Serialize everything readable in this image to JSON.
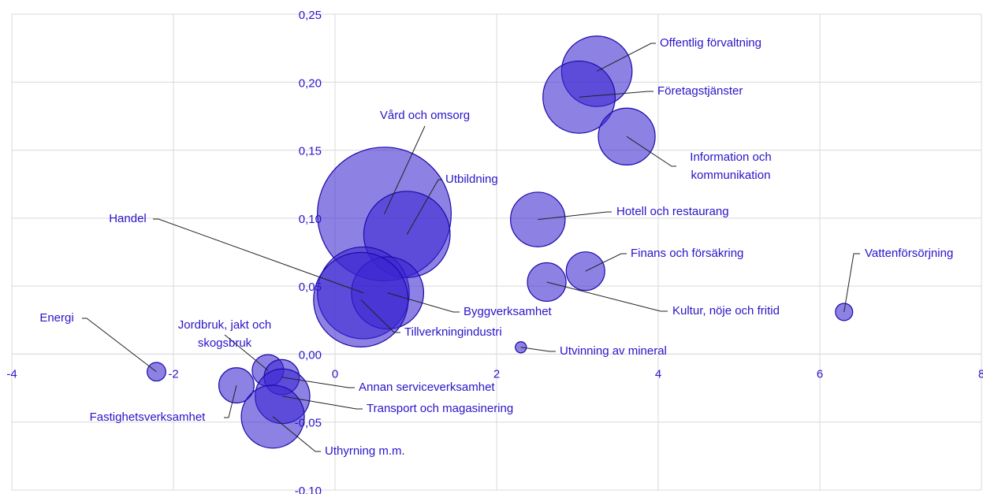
{
  "chart_data": {
    "type": "bubble",
    "labels": [
      "Offentlig förvaltning",
      "Företagstjänster",
      "Information och kommunikation",
      "Vård och omsorg",
      "Utbildning",
      "Hotell och restaurang",
      "Finans och försäkring",
      "Kultur, nöje och fritid",
      "Vattenförsörjning",
      "Handel",
      "Byggverksamhet",
      "Tillverkningindustri",
      "Utvinning av mineral",
      "Energi",
      "Jordbruk, jakt och skogsbruk",
      "Annan serviceverksamhet",
      "Fastighetsverksamhet",
      "Transport och magasinering",
      "Uthyrning m.m."
    ],
    "x": [
      3.24,
      3.02,
      3.61,
      0.61,
      0.89,
      2.51,
      3.1,
      2.62,
      6.3,
      0.35,
      0.65,
      0.32,
      2.3,
      -2.21,
      -0.83,
      -0.66,
      -1.22,
      -0.65,
      -0.77
    ],
    "values": [
      0.208,
      0.189,
      0.16,
      0.103,
      0.088,
      0.099,
      0.061,
      0.053,
      0.031,
      0.045,
      0.045,
      0.04,
      0.005,
      -0.013,
      -0.012,
      -0.017,
      -0.023,
      -0.031,
      -0.046
    ],
    "sizes": [
      20,
      21,
      13,
      72,
      30,
      12,
      6,
      6,
      1.2,
      34,
      21,
      36,
      0.5,
      1.4,
      4,
      5,
      5,
      12,
      16
    ],
    "color": "#3a26d0",
    "xlim": [
      -4,
      8
    ],
    "xticks": [
      -4,
      -2,
      0,
      2,
      4,
      6,
      8
    ],
    "ylim": [
      -0.1,
      0.25
    ],
    "yticks": [
      {
        "value": -0.1,
        "label": "-0,10"
      },
      {
        "value": -0.05,
        "label": "-0,05"
      },
      {
        "value": 0.0,
        "label": "0,00"
      },
      {
        "value": 0.05,
        "label": "0,05"
      },
      {
        "value": 0.1,
        "label": "0,10"
      },
      {
        "value": 0.15,
        "label": "0,15"
      },
      {
        "value": 0.2,
        "label": "0,20"
      },
      {
        "value": 0.25,
        "label": "0,25"
      }
    ],
    "grid": true
  }
}
